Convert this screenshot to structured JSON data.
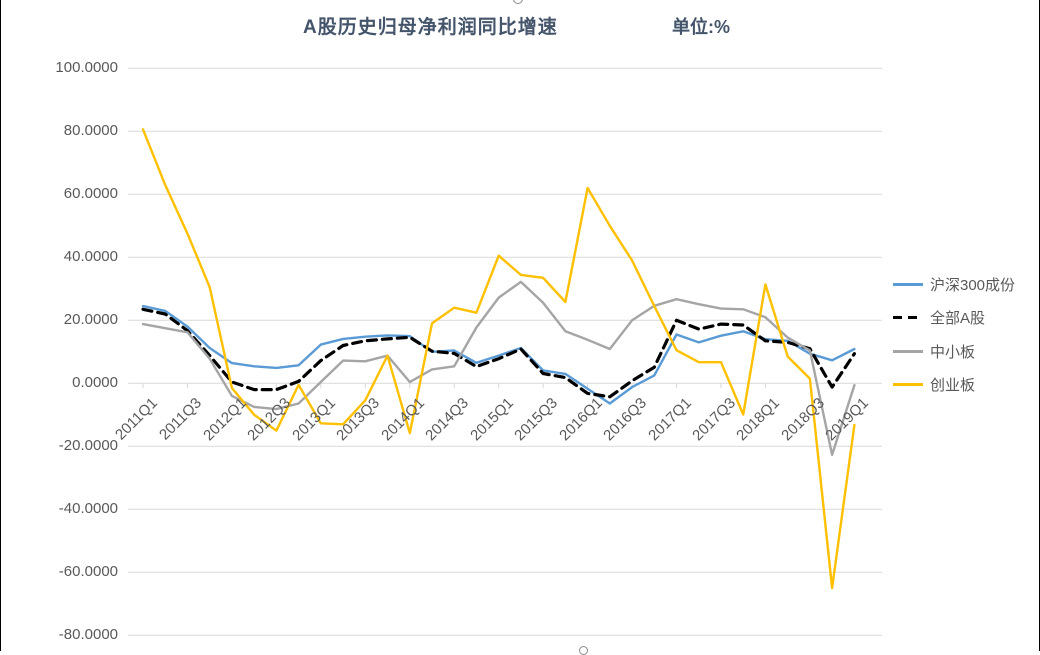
{
  "chart": {
    "title": "A股历史归母净利润同比增速",
    "unit_label": "单位:%"
  },
  "chart_data": {
    "type": "line",
    "title": "A股历史归母净利润同比增速",
    "unit": "单位:%",
    "grid": true,
    "legend_position": "right",
    "ylim": [
      -80,
      100
    ],
    "y_tick_values": [
      100,
      80,
      60,
      40,
      20,
      0,
      -20,
      -40,
      -60,
      -80
    ],
    "y_tick_labels": [
      "100.0000",
      "80.0000",
      "60.0000",
      "40.0000",
      "20.0000",
      "0.0000",
      "-20.0000",
      "-40.0000",
      "-60.0000",
      "-80.0000"
    ],
    "categories": [
      "2011Q1",
      "2011Q2",
      "2011Q3",
      "2011Q4",
      "2012Q1",
      "2012Q2",
      "2012Q3",
      "2012Q4",
      "2013Q1",
      "2013Q2",
      "2013Q3",
      "2013Q4",
      "2014Q1",
      "2014Q2",
      "2014Q3",
      "2014Q4",
      "2015Q1",
      "2015Q2",
      "2015Q3",
      "2015Q4",
      "2016Q1",
      "2016Q2",
      "2016Q3",
      "2016Q4",
      "2017Q1",
      "2017Q2",
      "2017Q3",
      "2017Q4",
      "2018Q1",
      "2018Q2",
      "2018Q3",
      "2018Q4",
      "2019Q1"
    ],
    "x_tick_labels": [
      "2011Q1",
      "2011Q3",
      "2012Q1",
      "2012Q3",
      "2013Q1",
      "2013Q3",
      "2014Q1",
      "2014Q3",
      "2015Q1",
      "2015Q3",
      "2016Q1",
      "2016Q3",
      "2017Q1",
      "2017Q3",
      "2018Q1",
      "2018Q3",
      "2019Q1"
    ],
    "series": [
      {
        "key": "hs300",
        "name": "沪深300成份",
        "color": "#5B9BD5",
        "dash": "solid",
        "values": [
          24.5,
          23,
          18,
          11.2,
          6.4,
          5.4,
          4.9,
          5.7,
          12.3,
          14.1,
          14.8,
          15.2,
          15,
          10,
          10.4,
          6.5,
          8.8,
          11.2,
          4.1,
          3,
          -1.7,
          -6.4,
          -1.2,
          2.5,
          15.5,
          13,
          15.1,
          16.5,
          14,
          13.5,
          9.4,
          7.3,
          10.9
        ]
      },
      {
        "key": "all-a-shares",
        "name": "全部A股",
        "color": "#000000",
        "dash": "dashed",
        "values": [
          23.5,
          22,
          16.7,
          8.8,
          0.4,
          -2,
          -2,
          0.6,
          7.2,
          12,
          13.5,
          14.1,
          14.6,
          10.2,
          9.5,
          5.3,
          7.8,
          10.9,
          3.1,
          1.8,
          -3.2,
          -4.3,
          0.8,
          5.1,
          20,
          17.2,
          18.8,
          18.5,
          13.5,
          13,
          11,
          -1.2,
          9.4
        ]
      },
      {
        "key": "sme-board",
        "name": "中小板",
        "color": "#A5A5A5",
        "dash": "solid",
        "values": [
          18.8,
          17.5,
          16.2,
          7.8,
          -4,
          -7.5,
          -8.2,
          -6.4,
          0.4,
          7.2,
          7,
          8.8,
          0.4,
          4.4,
          5.4,
          17.7,
          27.2,
          32.2,
          25.6,
          16.5,
          13.8,
          10.9,
          20,
          24.6,
          26.7,
          25.1,
          23.7,
          23.5,
          21,
          14.5,
          10.4,
          -22.7,
          -0.6
        ]
      },
      {
        "key": "chinext-board",
        "name": "创业板",
        "color": "#FFC000",
        "dash": "solid",
        "values": [
          80.6,
          63,
          47.5,
          30.5,
          -1.5,
          -10,
          -15,
          -0.5,
          -12.7,
          -13,
          -5.4,
          8.8,
          -15.8,
          19,
          24,
          22.4,
          40.5,
          34.4,
          33.5,
          25.8,
          62,
          50,
          39,
          24.5,
          10.5,
          6.7,
          6.7,
          -9.9,
          31.4,
          8.5,
          1.5,
          -65,
          -13.2
        ]
      }
    ],
    "gridline_color": "#D9D9D9",
    "label_color": "#595959",
    "title_color": "#44546A"
  }
}
